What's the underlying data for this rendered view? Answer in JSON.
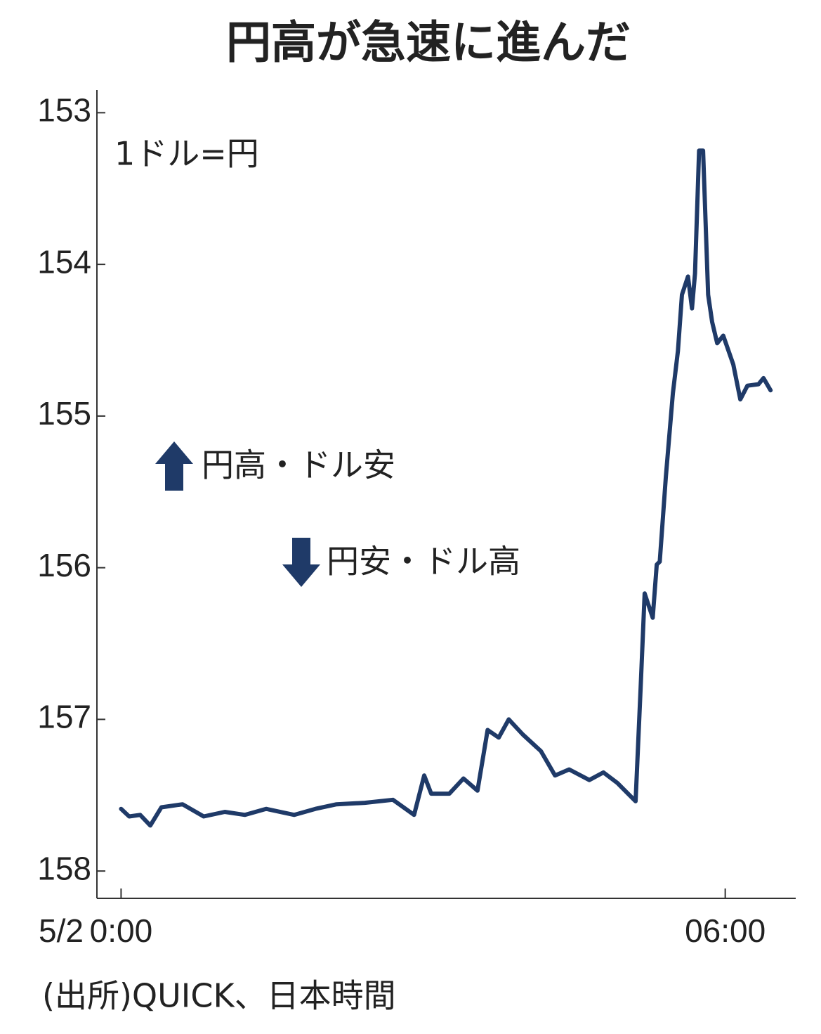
{
  "chart_data": {
    "type": "line",
    "title": "円高が急速に進んだ",
    "unit_label": "1ドル=円",
    "annotations": [
      "円高・ドル安",
      "円安・ドル高"
    ],
    "date_label": "5/2",
    "source": "(出所)QUICK、日本時間",
    "y_inverted": true,
    "ylim": [
      152.85,
      158.18
    ],
    "yticks": [
      153,
      154,
      155,
      156,
      157,
      158
    ],
    "xlim": [
      -0.24,
      6.7
    ],
    "xticks": [
      {
        "value": 0,
        "label": "0:00"
      },
      {
        "value": 6,
        "label": "06:00"
      }
    ],
    "x": [
      0.0,
      0.08,
      0.19,
      0.29,
      0.4,
      0.61,
      0.82,
      1.03,
      1.23,
      1.44,
      1.72,
      1.93,
      2.14,
      2.42,
      2.7,
      2.91,
      3.01,
      3.08,
      3.26,
      3.4,
      3.54,
      3.64,
      3.75,
      3.85,
      3.99,
      4.17,
      4.31,
      4.45,
      4.65,
      4.79,
      4.93,
      5.11,
      5.16,
      5.2,
      5.28,
      5.32,
      5.35,
      5.41,
      5.48,
      5.53,
      5.57,
      5.63,
      5.67,
      5.7,
      5.74,
      5.78,
      5.83,
      5.87,
      5.92,
      5.98,
      6.08,
      6.15,
      6.22,
      6.33,
      6.38,
      6.45
    ],
    "series": [
      {
        "color": "#1f3a68",
        "values": [
          157.59,
          157.64,
          157.63,
          157.7,
          157.58,
          157.56,
          157.64,
          157.61,
          157.63,
          157.59,
          157.63,
          157.59,
          157.56,
          157.55,
          157.53,
          157.63,
          157.37,
          157.49,
          157.49,
          157.39,
          157.47,
          157.07,
          157.12,
          157.0,
          157.1,
          157.21,
          157.37,
          157.33,
          157.4,
          157.35,
          157.42,
          157.54,
          156.79,
          156.17,
          156.33,
          155.98,
          155.96,
          155.4,
          154.85,
          154.57,
          154.2,
          154.08,
          154.29,
          154.06,
          153.25,
          153.25,
          154.2,
          154.38,
          154.52,
          154.47,
          154.66,
          154.89,
          154.8,
          154.79,
          154.75,
          154.83
        ]
      }
    ]
  }
}
